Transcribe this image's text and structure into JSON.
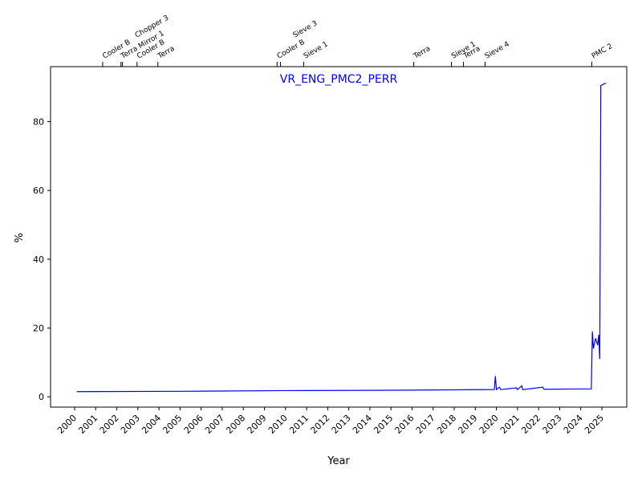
{
  "chart_data": {
    "type": "line",
    "title": "VR_ENG_PMC2_PERR",
    "x_label": "Year",
    "y_label": "%",
    "xlim": [
      1998.86,
      2026.18
    ],
    "ylim": [
      -3,
      96
    ],
    "xticks": [
      2000,
      2001,
      2002,
      2003,
      2004,
      2005,
      2006,
      2007,
      2008,
      2009,
      2010,
      2011,
      2012,
      2013,
      2014,
      2015,
      2016,
      2017,
      2018,
      2019,
      2020,
      2021,
      2022,
      2023,
      2024,
      2025
    ],
    "yticks": [
      0,
      20,
      40,
      60,
      80
    ],
    "series": [
      {
        "color": "#0000ff",
        "x": [
          2000.1,
          2005,
          2010,
          2015,
          2019.9,
          2019.95,
          2020,
          2020.15,
          2020.2,
          2020.95,
          2021,
          2021.2,
          2021.25,
          2022.2,
          2022.25,
          2024.5,
          2024.55,
          2024.6,
          2024.7,
          2024.8,
          2024.85,
          2024.9,
          2024.95,
          2025.1,
          2025.2
        ],
        "values": [
          1.5,
          1.6,
          1.8,
          1.9,
          2.1,
          6,
          2.1,
          2.8,
          2.1,
          2.6,
          2.1,
          3.2,
          2.1,
          2.8,
          2.2,
          2.3,
          19,
          14,
          17,
          15,
          18,
          11,
          90.5,
          91,
          91.2
        ]
      }
    ],
    "events": [
      {
        "x": 2001.33,
        "label": "Cooler B"
      },
      {
        "x": 2002.2,
        "label": "Terra Mirror 1"
      },
      {
        "x": 2002.27,
        "label": "Chopper 3"
      },
      {
        "x": 2002.96,
        "label": "Cooler B"
      },
      {
        "x": 2003.95,
        "label": "Terra"
      },
      {
        "x": 2009.6,
        "label": "Cooler B"
      },
      {
        "x": 2009.76,
        "label": "Sieve 3"
      },
      {
        "x": 2010.86,
        "label": "Sieve 1"
      },
      {
        "x": 2016.08,
        "label": "Terra"
      },
      {
        "x": 2017.87,
        "label": "Sieve 1"
      },
      {
        "x": 2018.44,
        "label": "Terra"
      },
      {
        "x": 2019.46,
        "label": "Sieve 4"
      },
      {
        "x": 2024.52,
        "label": "PMC 2"
      }
    ]
  }
}
